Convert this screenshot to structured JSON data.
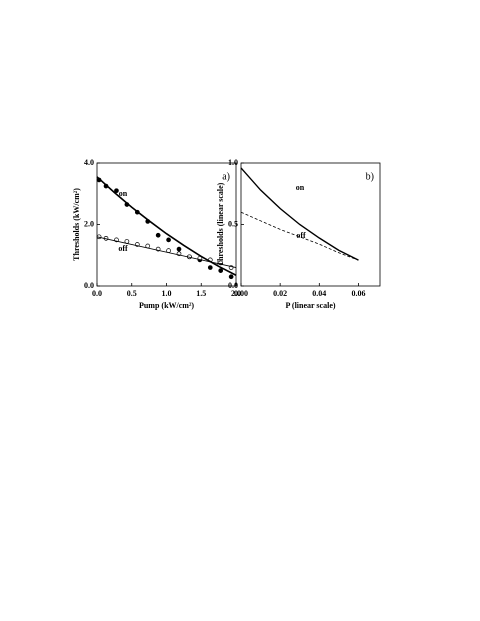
{
  "chart_data": [
    {
      "type": "scatter",
      "panel_label": "a)",
      "x_label": "Pump (kW/cm²)",
      "y_label": "Thresholds (kW/cm²)",
      "xlim": [
        0,
        2
      ],
      "ylim": [
        0,
        4
      ],
      "xticks": [
        {
          "value": 0,
          "label": "0.0"
        },
        {
          "value": 0.5,
          "label": "0.5"
        },
        {
          "value": 1,
          "label": "1.0"
        },
        {
          "value": 1.5,
          "label": "1.5"
        },
        {
          "value": 2,
          "label": "2.0"
        }
      ],
      "yticks": [
        {
          "value": 0,
          "label": "0.0"
        },
        {
          "value": 2,
          "label": "2.0"
        },
        {
          "value": 4,
          "label": "4.0"
        }
      ],
      "series": [
        {
          "name": "on",
          "marker": "filled",
          "color": "#000",
          "x": [
            0.03,
            0.13,
            0.28,
            0.43,
            0.58,
            0.73,
            0.88,
            1.03,
            1.18,
            1.33,
            1.48,
            1.63,
            1.78,
            1.93
          ],
          "values": [
            3.45,
            3.25,
            3.1,
            2.65,
            2.4,
            2.1,
            1.65,
            1.5,
            1.2,
            0.95,
            0.85,
            0.6,
            0.5,
            0.3
          ]
        },
        {
          "name": "off",
          "marker": "open",
          "color": "#000",
          "x": [
            0.03,
            0.13,
            0.28,
            0.43,
            0.58,
            0.73,
            0.88,
            1.03,
            1.18,
            1.33,
            1.48,
            1.63,
            1.78,
            1.93
          ],
          "values": [
            1.6,
            1.55,
            1.5,
            1.45,
            1.35,
            1.3,
            1.2,
            1.15,
            1.05,
            0.95,
            0.9,
            0.85,
            0.75,
            0.6
          ]
        },
        {
          "style": "line",
          "width": 1.6,
          "color": "#000",
          "x": [
            0,
            0.25,
            0.5,
            0.75,
            1,
            1.25,
            1.5,
            1.75,
            2
          ],
          "values": [
            3.55,
            3.04,
            2.56,
            2.12,
            1.7,
            1.32,
            0.96,
            0.64,
            0.35
          ]
        },
        {
          "style": "line",
          "width": 0.8,
          "color": "#000",
          "x": [
            0,
            2
          ],
          "values": [
            1.6,
            0.6
          ]
        }
      ]
    },
    {
      "type": "line",
      "panel_label": "b)",
      "x_label": "P (linear scale)",
      "y_label": "Thresholds (linear scale)",
      "xlim": [
        0,
        0.071
      ],
      "ylim": [
        0,
        1
      ],
      "xticks": [
        {
          "value": 0,
          "label": "0.00"
        },
        0.02,
        0.04,
        0.06
      ],
      "yticks": [
        {
          "value": 0,
          "label": "0.0"
        },
        0.5,
        {
          "value": 1,
          "label": "1.0"
        }
      ],
      "series": [
        {
          "name": "on",
          "width": 1.4,
          "color": "#000",
          "x": [
            0,
            0.01,
            0.02,
            0.03,
            0.04,
            0.05,
            0.06
          ],
          "values": [
            0.96,
            0.78,
            0.63,
            0.5,
            0.39,
            0.29,
            0.21
          ]
        },
        {
          "name": "off",
          "width": 0.8,
          "dash": true,
          "color": "#000",
          "x": [
            0,
            0.01,
            0.02,
            0.03,
            0.04,
            0.05,
            0.06
          ],
          "values": [
            0.6,
            0.53,
            0.46,
            0.4,
            0.34,
            0.27,
            0.21
          ]
        }
      ]
    }
  ]
}
